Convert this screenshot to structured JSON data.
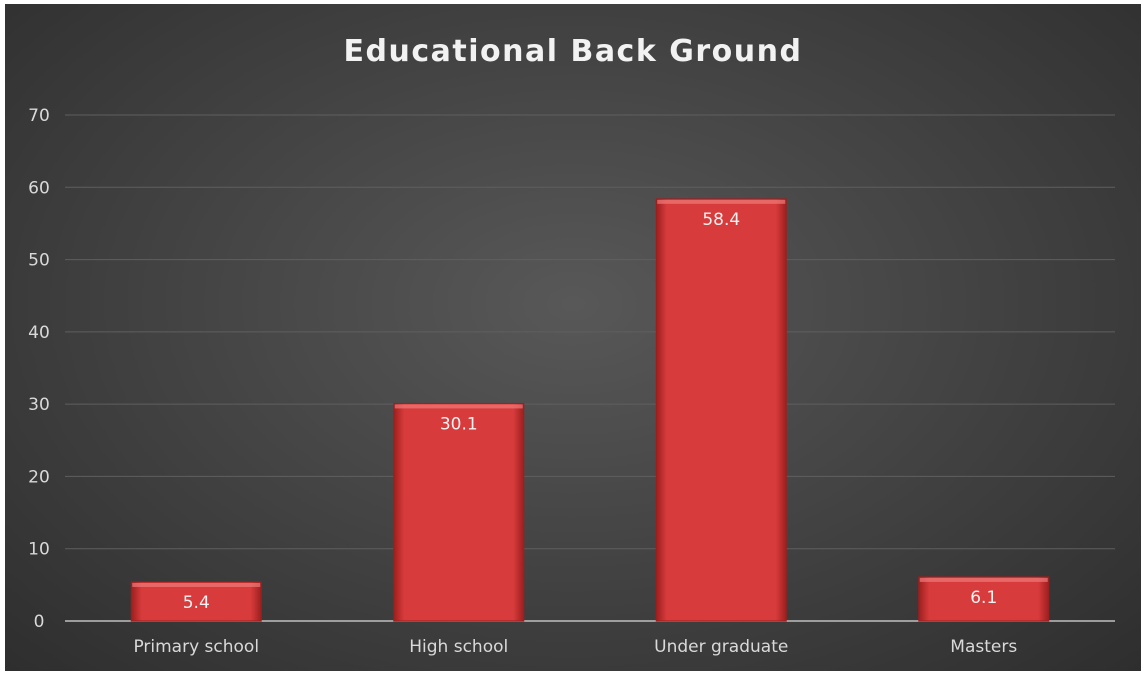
{
  "chart_data": {
    "type": "bar",
    "title": "Educational Back Ground",
    "xlabel": "",
    "ylabel": "",
    "categories": [
      "Primary school",
      "High school",
      "Under graduate",
      "Masters"
    ],
    "values": [
      5.4,
      30.1,
      58.4,
      6.1
    ],
    "data_labels": [
      "5.4",
      "30.1",
      "58.4",
      "6.1"
    ],
    "ylim": [
      0,
      70
    ],
    "yticks": [
      0,
      10,
      20,
      30,
      40,
      50,
      60,
      70
    ],
    "grid": true,
    "legend": "none",
    "colors": {
      "bar": "#d83b3b",
      "bar_dark": "#9c1f1f",
      "bar_light": "#f07a7a",
      "grid": "#5f5f5f",
      "axis": "#bfbfbf"
    }
  }
}
